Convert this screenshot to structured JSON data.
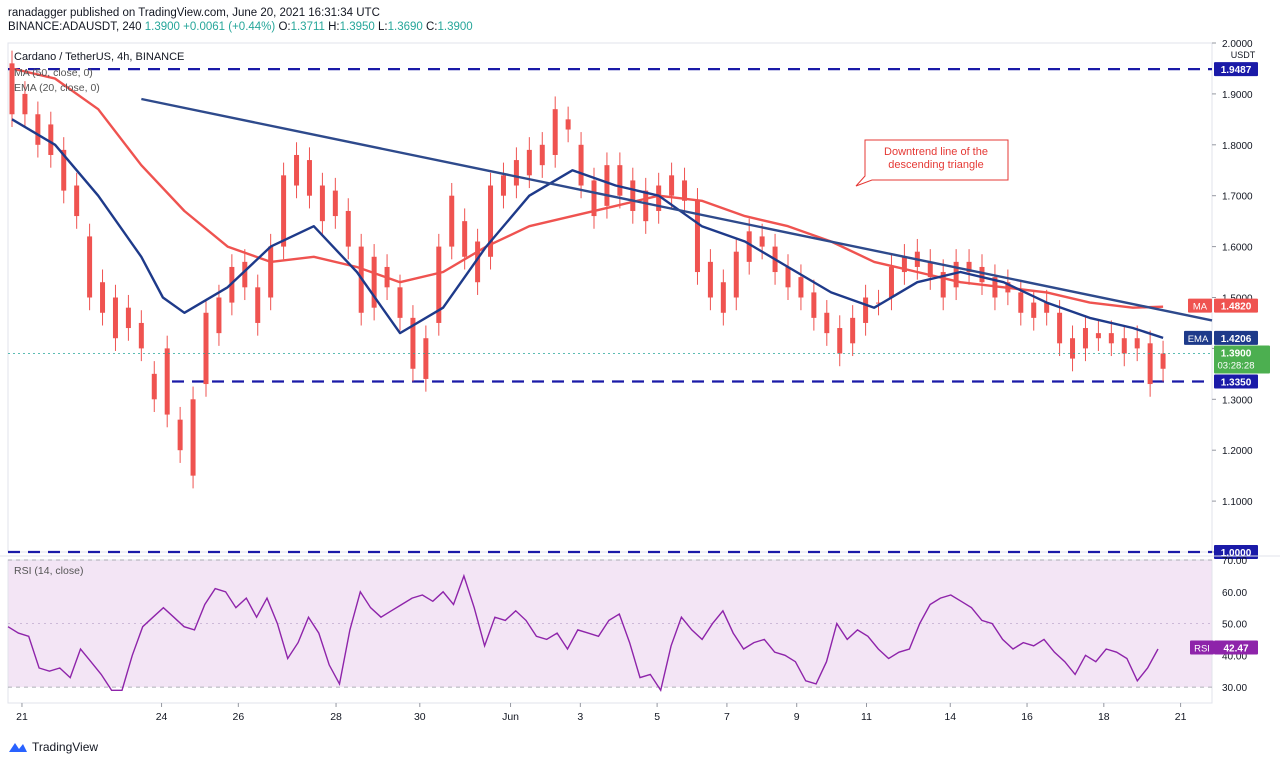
{
  "header": {
    "line1": "ranadagger published on TradingView.com, June 20, 2021 16:31:34 UTC",
    "symbol": "BINANCE:ADAUSDT, 240",
    "price": "1.3900",
    "change": "+0.0061 (+0.44%)",
    "open_label": "O:",
    "open": "1.3711",
    "high_label": "H:",
    "high": "1.3950",
    "low_label": "L:",
    "low": "1.3690",
    "close_label": "C:",
    "close": "1.3900"
  },
  "footer": {
    "brand": "TradingView"
  },
  "colors": {
    "up": "#26a69a",
    "down": "#ef5350",
    "ema": "#1e3a8a",
    "ma": "#ef5350",
    "trend": "#2e4a8c",
    "level": "#1a1aa8",
    "rsi": "#8e24aa",
    "rsi_bg": "#f3e5f5"
  },
  "chart_data": [
    {
      "type": "candlestick",
      "title": "Cardano / TetherUS, 4h, BINANCE",
      "currency": "USDT",
      "ylim": [
        1.0,
        2.0
      ],
      "y_ticks": [
        "2.0000",
        "1.9000",
        "1.8000",
        "1.7000",
        "1.6000",
        "1.5000",
        "1.4000",
        "1.3000",
        "1.2000",
        "1.1000",
        "1.0000"
      ],
      "x_ticks": [
        "21",
        "24",
        "26",
        "28",
        "30",
        "Jun",
        "3",
        "5",
        "7",
        "9",
        "11",
        "14",
        "16",
        "18",
        "21"
      ],
      "indicators": [
        {
          "name": "MA (50, close, 0)",
          "tag": "MA",
          "last": "1.4820"
        },
        {
          "name": "EMA (20, close, 0)",
          "tag": "EMA",
          "last": "1.4206"
        }
      ],
      "levels": [
        {
          "value": 1.9487,
          "label": "1.9487"
        },
        {
          "value": 1.335,
          "label": "1.3350"
        },
        {
          "value": 1.0,
          "label": "1.0000"
        }
      ],
      "last_price": {
        "label": "1.3900",
        "countdown": "03:28:28"
      },
      "annotation": {
        "text_line1": "Downtrend line of the",
        "text_line2": "descending triangle"
      },
      "trendline": [
        {
          "t": 3.0,
          "v": 1.89
        },
        {
          "t": 31.0,
          "v": 1.455
        }
      ],
      "ohlc_points": [
        [
          0.0,
          1.86,
          1.96
        ],
        [
          0.3,
          1.86,
          1.9
        ],
        [
          0.6,
          1.8,
          1.86
        ],
        [
          0.9,
          1.78,
          1.84
        ],
        [
          1.2,
          1.71,
          1.79
        ],
        [
          1.5,
          1.66,
          1.72
        ],
        [
          1.8,
          1.5,
          1.62
        ],
        [
          2.1,
          1.47,
          1.53
        ],
        [
          2.4,
          1.42,
          1.5
        ],
        [
          2.7,
          1.44,
          1.48
        ],
        [
          3.0,
          1.4,
          1.45
        ],
        [
          3.3,
          1.3,
          1.35
        ],
        [
          3.6,
          1.27,
          1.4
        ],
        [
          3.9,
          1.2,
          1.26
        ],
        [
          4.2,
          1.15,
          1.3
        ],
        [
          4.5,
          1.33,
          1.47
        ],
        [
          4.8,
          1.43,
          1.5
        ],
        [
          5.1,
          1.49,
          1.56
        ],
        [
          5.4,
          1.52,
          1.57
        ],
        [
          5.7,
          1.45,
          1.52
        ],
        [
          6.0,
          1.5,
          1.6
        ],
        [
          6.3,
          1.6,
          1.74
        ],
        [
          6.6,
          1.72,
          1.78
        ],
        [
          6.9,
          1.7,
          1.77
        ],
        [
          7.2,
          1.65,
          1.72
        ],
        [
          7.5,
          1.66,
          1.71
        ],
        [
          7.8,
          1.6,
          1.67
        ],
        [
          8.1,
          1.47,
          1.6
        ],
        [
          8.4,
          1.48,
          1.58
        ],
        [
          8.7,
          1.52,
          1.56
        ],
        [
          9.0,
          1.46,
          1.52
        ],
        [
          9.3,
          1.36,
          1.46
        ],
        [
          9.6,
          1.34,
          1.42
        ],
        [
          9.9,
          1.45,
          1.6
        ],
        [
          10.2,
          1.6,
          1.7
        ],
        [
          10.5,
          1.58,
          1.65
        ],
        [
          10.8,
          1.53,
          1.61
        ],
        [
          11.1,
          1.58,
          1.72
        ],
        [
          11.4,
          1.7,
          1.74
        ],
        [
          11.7,
          1.72,
          1.77
        ],
        [
          12.0,
          1.74,
          1.79
        ],
        [
          12.3,
          1.76,
          1.8
        ],
        [
          12.6,
          1.78,
          1.87
        ],
        [
          12.9,
          1.83,
          1.85
        ],
        [
          13.2,
          1.72,
          1.8
        ],
        [
          13.5,
          1.66,
          1.73
        ],
        [
          13.8,
          1.68,
          1.76
        ],
        [
          14.1,
          1.7,
          1.76
        ],
        [
          14.4,
          1.67,
          1.73
        ],
        [
          14.7,
          1.65,
          1.71
        ],
        [
          15.0,
          1.67,
          1.72
        ],
        [
          15.3,
          1.7,
          1.74
        ],
        [
          15.6,
          1.69,
          1.73
        ],
        [
          15.9,
          1.55,
          1.69
        ],
        [
          16.2,
          1.5,
          1.57
        ],
        [
          16.5,
          1.47,
          1.53
        ],
        [
          16.8,
          1.5,
          1.59
        ],
        [
          17.1,
          1.57,
          1.63
        ],
        [
          17.4,
          1.6,
          1.62
        ],
        [
          17.7,
          1.55,
          1.6
        ],
        [
          18.0,
          1.52,
          1.56
        ],
        [
          18.3,
          1.5,
          1.54
        ],
        [
          18.6,
          1.46,
          1.51
        ],
        [
          18.9,
          1.43,
          1.47
        ],
        [
          19.2,
          1.39,
          1.44
        ],
        [
          19.5,
          1.41,
          1.46
        ],
        [
          19.8,
          1.45,
          1.5
        ],
        [
          20.1,
          1.49,
          1.49
        ],
        [
          20.4,
          1.5,
          1.56
        ],
        [
          20.7,
          1.55,
          1.58
        ],
        [
          21.0,
          1.56,
          1.59
        ],
        [
          21.3,
          1.54,
          1.57
        ],
        [
          21.6,
          1.5,
          1.55
        ],
        [
          21.9,
          1.52,
          1.57
        ],
        [
          22.2,
          1.55,
          1.57
        ],
        [
          22.5,
          1.53,
          1.56
        ],
        [
          22.8,
          1.5,
          1.54
        ],
        [
          23.1,
          1.51,
          1.53
        ],
        [
          23.4,
          1.47,
          1.51
        ],
        [
          23.7,
          1.46,
          1.49
        ],
        [
          24.0,
          1.47,
          1.49
        ],
        [
          24.3,
          1.41,
          1.47
        ],
        [
          24.6,
          1.38,
          1.42
        ],
        [
          24.9,
          1.4,
          1.44
        ],
        [
          25.2,
          1.42,
          1.43
        ],
        [
          25.5,
          1.41,
          1.43
        ],
        [
          25.8,
          1.39,
          1.42
        ],
        [
          26.1,
          1.4,
          1.42
        ],
        [
          26.4,
          1.33,
          1.41
        ],
        [
          26.7,
          1.36,
          1.39
        ]
      ],
      "ema": [
        [
          0.0,
          1.85
        ],
        [
          1.0,
          1.8
        ],
        [
          2.0,
          1.7
        ],
        [
          3.0,
          1.58
        ],
        [
          3.5,
          1.5
        ],
        [
          4.0,
          1.47
        ],
        [
          5.0,
          1.52
        ],
        [
          6.0,
          1.6
        ],
        [
          7.0,
          1.64
        ],
        [
          8.0,
          1.55
        ],
        [
          9.0,
          1.43
        ],
        [
          10.0,
          1.48
        ],
        [
          11.0,
          1.6
        ],
        [
          12.0,
          1.7
        ],
        [
          13.0,
          1.75
        ],
        [
          14.0,
          1.72
        ],
        [
          15.0,
          1.7
        ],
        [
          16.0,
          1.64
        ],
        [
          17.0,
          1.61
        ],
        [
          18.0,
          1.56
        ],
        [
          19.0,
          1.51
        ],
        [
          20.0,
          1.48
        ],
        [
          21.0,
          1.53
        ],
        [
          22.0,
          1.55
        ],
        [
          23.0,
          1.53
        ],
        [
          24.0,
          1.49
        ],
        [
          25.0,
          1.46
        ],
        [
          26.0,
          1.44
        ],
        [
          26.7,
          1.4206
        ]
      ],
      "ma": [
        [
          0.0,
          1.95
        ],
        [
          1.0,
          1.93
        ],
        [
          2.0,
          1.87
        ],
        [
          3.0,
          1.76
        ],
        [
          4.0,
          1.67
        ],
        [
          5.0,
          1.6
        ],
        [
          6.0,
          1.57
        ],
        [
          7.0,
          1.58
        ],
        [
          8.0,
          1.56
        ],
        [
          9.0,
          1.53
        ],
        [
          10.0,
          1.55
        ],
        [
          11.0,
          1.6
        ],
        [
          12.0,
          1.64
        ],
        [
          13.0,
          1.66
        ],
        [
          14.0,
          1.68
        ],
        [
          15.0,
          1.7
        ],
        [
          16.0,
          1.69
        ],
        [
          17.0,
          1.66
        ],
        [
          18.0,
          1.64
        ],
        [
          19.0,
          1.61
        ],
        [
          20.0,
          1.57
        ],
        [
          21.0,
          1.55
        ],
        [
          22.0,
          1.53
        ],
        [
          23.0,
          1.52
        ],
        [
          24.0,
          1.51
        ],
        [
          25.0,
          1.49
        ],
        [
          26.0,
          1.48
        ],
        [
          26.7,
          1.482
        ]
      ]
    },
    {
      "type": "line",
      "title": "RSI (14, close)",
      "ylim": [
        25,
        70
      ],
      "y_ticks": [
        "70.00",
        "60.00",
        "50.00",
        "40.00",
        "30.00"
      ],
      "bands": [
        30,
        70
      ],
      "tag": "RSI",
      "last": "42.47",
      "values": [
        49,
        47,
        46,
        36,
        35,
        36,
        33,
        42,
        38,
        34,
        29,
        29,
        40,
        49,
        52,
        55,
        52,
        49,
        48,
        56,
        61,
        60,
        55,
        58,
        52,
        58,
        50,
        39,
        44,
        52,
        47,
        37,
        31,
        48,
        60,
        55,
        52,
        54,
        56,
        58,
        59,
        57,
        60,
        56,
        65,
        55,
        43,
        52,
        51,
        54,
        51,
        46,
        45,
        47,
        42,
        48,
        47,
        46,
        51,
        53,
        44,
        33,
        34,
        29,
        43,
        52,
        48,
        45,
        50,
        54,
        47,
        42,
        44,
        45,
        41,
        40,
        38,
        32,
        31,
        38,
        50,
        45,
        48,
        46,
        42,
        39,
        41,
        42,
        50,
        56,
        58,
        59,
        57,
        55,
        51,
        50,
        45,
        42,
        44,
        43,
        45,
        41,
        38,
        34,
        40,
        38,
        42,
        41,
        39,
        32,
        36,
        42
      ]
    }
  ]
}
